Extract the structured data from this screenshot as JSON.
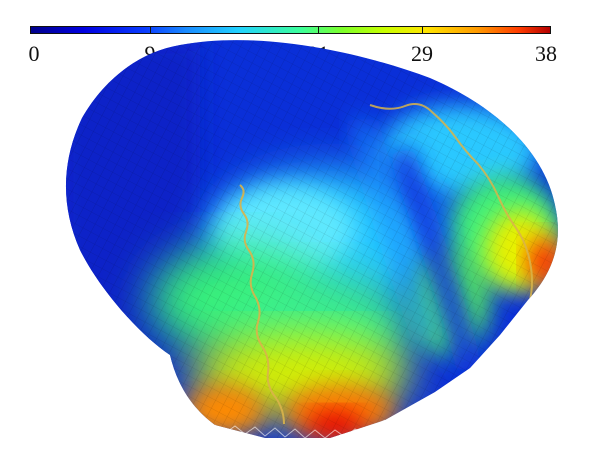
{
  "colorbar": {
    "ticks": [
      "0",
      "9",
      "21",
      "29",
      "38"
    ]
  },
  "figure": {
    "colormap": [
      "#00008b",
      "#0000e0",
      "#1a8cff",
      "#22d2ff",
      "#3cff9a",
      "#7dff2a",
      "#ffe600",
      "#ff9a00",
      "#ff3c00",
      "#b40000"
    ]
  }
}
